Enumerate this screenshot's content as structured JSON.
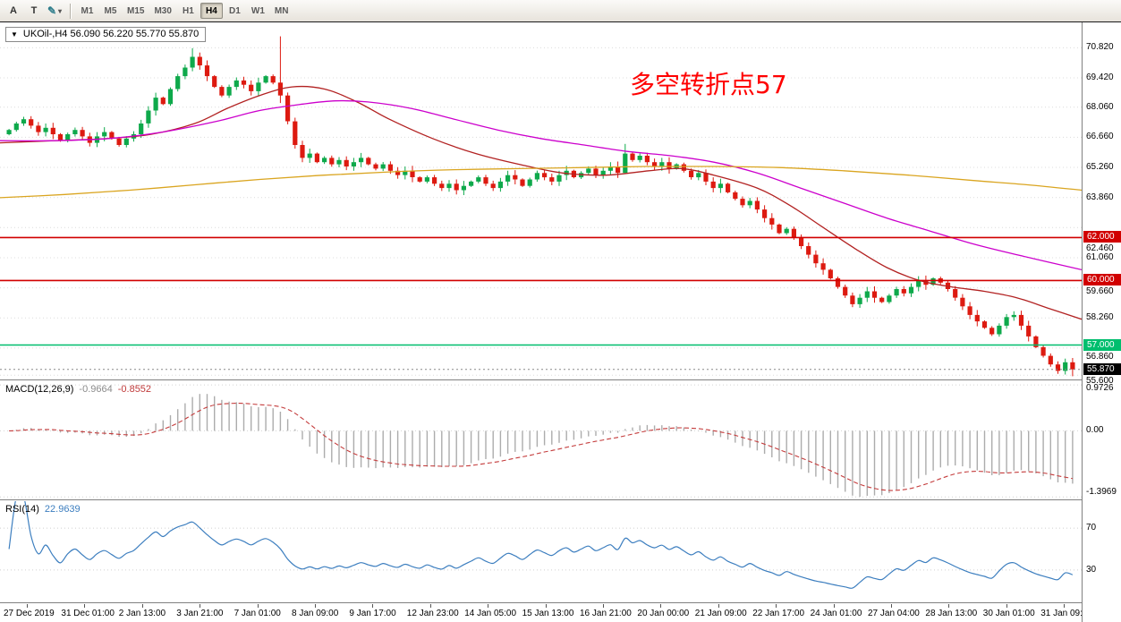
{
  "toolbar": {
    "tool_a": "A",
    "tool_t": "T",
    "pencil_icon": "✎",
    "caret_icon": "▾",
    "timeframes": [
      "M1",
      "M5",
      "M15",
      "M30",
      "H1",
      "H4",
      "D1",
      "W1",
      "MN"
    ],
    "active_timeframe": "H4"
  },
  "chart": {
    "collapse_arrow": "▼",
    "title": "UKOil-,H4 56.090 56.220 55.770 55.870",
    "annotation_text": "多空转折点57",
    "annotation_color": "#FF0000"
  },
  "macd": {
    "name": "MACD(12,26,9)",
    "main_value": "-0.9664",
    "signal_value": "-0.8552",
    "axis_max": "0.9726",
    "axis_zero": "0.00",
    "axis_min": "-1.3969"
  },
  "rsi": {
    "name": "RSI(14)",
    "value": "22.9639",
    "upper_level": "70",
    "lower_level": "30"
  },
  "chart_data": {
    "type": "candlestick",
    "symbol": "UKOil-",
    "timeframe": "H4",
    "ohlc_current": {
      "open": 56.09,
      "high": 56.22,
      "low": 55.77,
      "close": 55.87
    },
    "y_ticks": [
      "70.820",
      "69.420",
      "68.060",
      "66.660",
      "65.260",
      "63.860",
      "62.460",
      "61.060",
      "59.660",
      "58.260",
      "56.860",
      "55.600"
    ],
    "x_ticks": [
      "27 Dec 2019",
      "31 Dec 01:00",
      "2 Jan 13:00",
      "3 Jan 21:00",
      "7 Jan 01:00",
      "8 Jan 09:00",
      "9 Jan 17:00",
      "12 Jan 23:00",
      "14 Jan 05:00",
      "15 Jan 13:00",
      "16 Jan 21:00",
      "20 Jan 00:00",
      "21 Jan 09:00",
      "22 Jan 17:00",
      "24 Jan 01:00",
      "27 Jan 04:00",
      "28 Jan 13:00",
      "30 Jan 01:00",
      "31 Jan 09:00"
    ],
    "price_view": [
      55.4,
      72.0
    ],
    "first_open": 66.8,
    "closes": [
      67.0,
      67.3,
      67.5,
      67.2,
      66.9,
      67.1,
      66.8,
      66.5,
      66.8,
      67.0,
      66.7,
      66.4,
      66.7,
      66.9,
      66.6,
      66.3,
      66.6,
      66.8,
      67.3,
      67.9,
      68.5,
      68.2,
      68.9,
      69.5,
      69.9,
      70.4,
      70.0,
      69.5,
      69.0,
      68.6,
      69.0,
      69.3,
      69.1,
      68.8,
      69.2,
      69.5,
      69.2,
      68.6,
      67.4,
      66.3,
      65.7,
      65.9,
      65.5,
      65.7,
      65.4,
      65.6,
      65.3,
      65.5,
      65.7,
      65.4,
      65.2,
      65.4,
      65.1,
      64.9,
      65.1,
      64.8,
      64.6,
      64.8,
      64.5,
      64.3,
      64.5,
      64.2,
      64.4,
      64.6,
      64.8,
      64.5,
      64.3,
      64.6,
      64.9,
      64.7,
      64.4,
      64.7,
      65.0,
      64.8,
      64.6,
      64.9,
      65.1,
      64.8,
      65.0,
      65.2,
      64.9,
      65.1,
      65.3,
      65.0,
      65.9,
      65.6,
      65.8,
      65.5,
      65.3,
      65.5,
      65.2,
      65.4,
      65.1,
      64.8,
      65.0,
      64.6,
      64.3,
      64.5,
      64.1,
      63.8,
      63.5,
      63.7,
      63.3,
      62.9,
      62.6,
      62.2,
      62.4,
      62.0,
      61.6,
      61.2,
      60.8,
      60.5,
      60.1,
      59.7,
      59.3,
      58.9,
      59.2,
      59.5,
      59.2,
      59.0,
      59.3,
      59.6,
      59.4,
      59.7,
      60.0,
      59.8,
      60.1,
      59.9,
      59.6,
      59.2,
      58.8,
      58.4,
      58.1,
      57.8,
      57.5,
      57.9,
      58.3,
      58.4,
      57.9,
      57.4,
      56.9,
      56.5,
      56.1,
      55.8,
      56.2,
      55.87
    ],
    "wick_overrides": {
      "25": {
        "high": 70.8
      },
      "37": {
        "high": 71.35,
        "low": 68.25
      },
      "84": {
        "high": 66.35
      },
      "145": {
        "low": 55.55
      }
    },
    "hlines": [
      {
        "price": 62.0,
        "label": "62.000",
        "color": "#D10000"
      },
      {
        "price": 60.0,
        "label": "60.000",
        "color": "#D10000"
      },
      {
        "price": 57.0,
        "label": "57.000",
        "color": "#00BE6E"
      }
    ],
    "current_price": {
      "value": 55.87,
      "label": "55.870"
    },
    "moving_averages": [
      {
        "name": "fast-red",
        "color": "#B22222",
        "points": [
          [
            0,
            66.4
          ],
          [
            0.05,
            66.5
          ],
          [
            0.1,
            66.6
          ],
          [
            0.14,
            66.8
          ],
          [
            0.18,
            67.3
          ],
          [
            0.21,
            68.0
          ],
          [
            0.24,
            68.6
          ],
          [
            0.27,
            69.0
          ],
          [
            0.3,
            68.9
          ],
          [
            0.33,
            68.3
          ],
          [
            0.36,
            67.5
          ],
          [
            0.4,
            66.6
          ],
          [
            0.44,
            65.9
          ],
          [
            0.48,
            65.4
          ],
          [
            0.52,
            65.0
          ],
          [
            0.56,
            64.9
          ],
          [
            0.6,
            65.1
          ],
          [
            0.63,
            65.2
          ],
          [
            0.66,
            64.9
          ],
          [
            0.7,
            64.3
          ],
          [
            0.73,
            63.5
          ],
          [
            0.76,
            62.5
          ],
          [
            0.79,
            61.5
          ],
          [
            0.82,
            60.6
          ],
          [
            0.85,
            60.0
          ],
          [
            0.88,
            59.7
          ],
          [
            0.91,
            59.5
          ],
          [
            0.94,
            59.2
          ],
          [
            0.97,
            58.7
          ],
          [
            1,
            58.2
          ]
        ]
      },
      {
        "name": "mid-magenta",
        "color": "#CC00CC",
        "points": [
          [
            0,
            66.5
          ],
          [
            0.05,
            66.5
          ],
          [
            0.1,
            66.6
          ],
          [
            0.15,
            66.9
          ],
          [
            0.2,
            67.4
          ],
          [
            0.24,
            67.9
          ],
          [
            0.28,
            68.2
          ],
          [
            0.31,
            68.35
          ],
          [
            0.34,
            68.3
          ],
          [
            0.38,
            68.0
          ],
          [
            0.42,
            67.5
          ],
          [
            0.46,
            67.0
          ],
          [
            0.5,
            66.6
          ],
          [
            0.54,
            66.3
          ],
          [
            0.58,
            66.0
          ],
          [
            0.62,
            65.8
          ],
          [
            0.66,
            65.5
          ],
          [
            0.7,
            65.0
          ],
          [
            0.74,
            64.3
          ],
          [
            0.78,
            63.6
          ],
          [
            0.82,
            62.9
          ],
          [
            0.86,
            62.3
          ],
          [
            0.9,
            61.7
          ],
          [
            0.94,
            61.2
          ],
          [
            1,
            60.5
          ]
        ]
      },
      {
        "name": "slow-orange",
        "color": "#DAA520",
        "points": [
          [
            0,
            63.85
          ],
          [
            0.06,
            64.0
          ],
          [
            0.12,
            64.2
          ],
          [
            0.18,
            64.45
          ],
          [
            0.24,
            64.7
          ],
          [
            0.3,
            64.9
          ],
          [
            0.36,
            65.05
          ],
          [
            0.42,
            65.15
          ],
          [
            0.48,
            65.2
          ],
          [
            0.54,
            65.25
          ],
          [
            0.6,
            65.3
          ],
          [
            0.66,
            65.3
          ],
          [
            0.72,
            65.25
          ],
          [
            0.78,
            65.1
          ],
          [
            0.84,
            64.9
          ],
          [
            0.9,
            64.65
          ],
          [
            0.95,
            64.45
          ],
          [
            1,
            64.2
          ]
        ]
      }
    ],
    "macd_scale": [
      -1.45,
      1.05
    ],
    "rsi_levels": [
      70,
      30
    ]
  }
}
